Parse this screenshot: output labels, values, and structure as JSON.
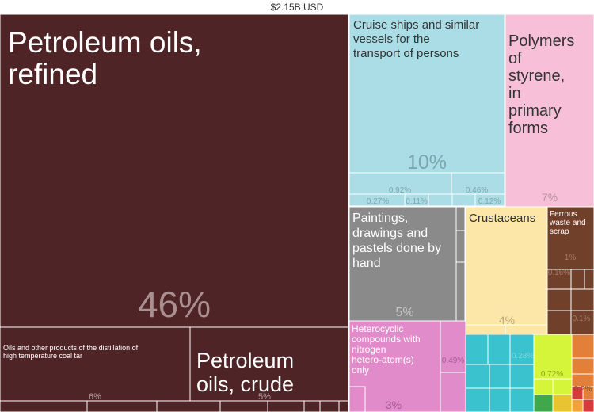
{
  "header": {
    "total": "$2.15B USD"
  },
  "chart_data": {
    "type": "treemap",
    "total": "$2.15B USD",
    "unit": "% of total",
    "cells": [
      {
        "label": "Petroleum oils, refined",
        "value": 46,
        "value_label": "46%",
        "color": "#4e2426"
      },
      {
        "label": "Oils and other products of the distillation of high temperature coal tar",
        "value": 6,
        "value_label": "6%",
        "color": "#4e2426"
      },
      {
        "label": "Petroleum oils, crude",
        "value": 5,
        "value_label": "5%",
        "color": "#4e2426"
      },
      {
        "label": "Cruise ships and similar vessels for the transport of persons",
        "value": 10,
        "value_label": "10%",
        "color": "#abdde6"
      },
      {
        "label": "",
        "value": 0.92,
        "value_label": "0.92%",
        "color": "#abdde6"
      },
      {
        "label": "",
        "value": 0.46,
        "value_label": "0.46%",
        "color": "#abdde6"
      },
      {
        "label": "",
        "value": 0.27,
        "value_label": "0.27%",
        "color": "#abdde6"
      },
      {
        "label": "",
        "value": 0.11,
        "value_label": "0.11%",
        "color": "#abdde6"
      },
      {
        "label": "",
        "value": 0.12,
        "value_label": "0.12%",
        "color": "#abdde6"
      },
      {
        "label": "Polymers of styrene, in primary forms",
        "value": 7,
        "value_label": "7%",
        "color": "#f7c0d8"
      },
      {
        "label": "Paintings, drawings and pastels done by hand",
        "value": 5,
        "value_label": "5%",
        "color": "#8a8a8a"
      },
      {
        "label": "Crustaceans",
        "value": 4,
        "value_label": "4%",
        "color": "#fce7a8"
      },
      {
        "label": "Ferrous waste and scrap",
        "value": 1,
        "value_label": "1%",
        "color": "#70402a"
      },
      {
        "label": "",
        "value": 0.16,
        "value_label": "0.16%",
        "color": "#70402a"
      },
      {
        "label": "",
        "value": 0.1,
        "value_label": "0.1%",
        "color": "#70402a"
      },
      {
        "label": "Heterocyclic compounds with nitrogen hetero-atom(s) only",
        "value": 3,
        "value_label": "3%",
        "color": "#e28bcb"
      },
      {
        "label": "",
        "value": 0.49,
        "value_label": "0.49%",
        "color": "#e28bcb"
      },
      {
        "label": "",
        "value": 0.28,
        "value_label": "0.28%",
        "color": "#3ac2cf"
      },
      {
        "label": "",
        "value": 0.72,
        "value_label": "0.72%",
        "color": "#d5f53a"
      },
      {
        "label": "",
        "value": 0.2,
        "value_label": "0.2%",
        "color": "#e2803a"
      }
    ]
  }
}
